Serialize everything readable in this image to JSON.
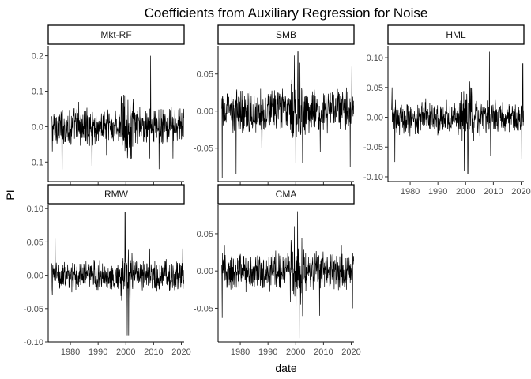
{
  "chart_data": {
    "type": "line",
    "title": "Coefficients from Auxiliary Regression for Noise",
    "xlabel": "date",
    "ylabel": "PI",
    "xlim": [
      1972,
      2021
    ],
    "xticks": [
      1980,
      1990,
      2000,
      2010,
      2020
    ],
    "grid": false,
    "line_color": "#000000",
    "panels": [
      {
        "name": "Mkt-RF",
        "ylim": [
          -0.155,
          0.228
        ],
        "yticks": [
          -0.1,
          0.0,
          0.1,
          0.2
        ],
        "ytick_labels": [
          "-0.1",
          "0.0",
          "0.1",
          "0.2"
        ],
        "approx_amplitude": 0.04,
        "x": [
          1973.5,
          1977,
          1983,
          1987.8,
          1993,
          1999.2,
          2000.1,
          2002,
          2008.6,
          2008.9,
          2012,
          2017,
          2020.8
        ],
        "y": [
          -0.07,
          -0.12,
          0.07,
          -0.11,
          -0.08,
          0.09,
          -0.13,
          -0.09,
          -0.09,
          0.2,
          -0.12,
          -0.09,
          0.05
        ]
      },
      {
        "name": "SMB",
        "ylim": [
          -0.095,
          0.088
        ],
        "yticks": [
          -0.05,
          0.0,
          0.05
        ],
        "ytick_labels": [
          "-0.05",
          "0.00",
          "0.05"
        ],
        "approx_amplitude": 0.022,
        "x": [
          1973.5,
          1978.5,
          1987.8,
          1999.5,
          2000.0,
          2000.8,
          2001.5,
          2002.5,
          2008.8,
          2019.6,
          2020.2
        ],
        "y": [
          -0.09,
          -0.085,
          -0.05,
          0.075,
          -0.07,
          0.08,
          0.065,
          -0.07,
          -0.055,
          -0.075,
          0.06
        ]
      },
      {
        "name": "HML",
        "ylim": [
          -0.108,
          0.12
        ],
        "yticks": [
          -0.1,
          -0.05,
          0.0,
          0.05,
          0.1
        ],
        "ytick_labels": [
          "-0.10",
          "-0.05",
          "0.00",
          "0.05",
          "0.10"
        ],
        "approx_amplitude": 0.022,
        "x": [
          1973.5,
          1974.5,
          1999.5,
          2000.8,
          2001.5,
          2008.6,
          2009.0,
          2020.2,
          2020.6
        ],
        "y": [
          0.05,
          -0.075,
          -0.09,
          -0.095,
          0.06,
          0.11,
          -0.065,
          -0.07,
          0.09
        ]
      },
      {
        "name": "RMW",
        "ylim": [
          -0.1,
          0.105
        ],
        "yticks": [
          -0.1,
          -0.05,
          0.0,
          0.05,
          0.1
        ],
        "ytick_labels": [
          "-0.10",
          "-0.05",
          "0.00",
          "0.05",
          "0.10"
        ],
        "approx_amplitude": 0.018,
        "x": [
          1973.5,
          1974.5,
          1999.7,
          2000.1,
          2000.5,
          2001.0,
          2001.5,
          2008.6,
          2020.5
        ],
        "y": [
          -0.03,
          0.055,
          0.095,
          -0.085,
          -0.09,
          -0.09,
          -0.05,
          0.04,
          0.04
        ]
      },
      {
        "name": "CMA",
        "ylim": [
          -0.095,
          0.088
        ],
        "yticks": [
          -0.05,
          0.0,
          0.05
        ],
        "ytick_labels": [
          "-0.05",
          "0.00",
          "0.05"
        ],
        "approx_amplitude": 0.02,
        "x": [
          1973.5,
          1974.3,
          1999.5,
          2000.1,
          2000.7,
          2001.3,
          2002.5,
          2008.6,
          2016.5,
          2020.5
        ],
        "y": [
          -0.063,
          0.035,
          0.06,
          -0.085,
          0.08,
          -0.09,
          -0.06,
          -0.06,
          0.035,
          -0.05
        ]
      }
    ]
  }
}
